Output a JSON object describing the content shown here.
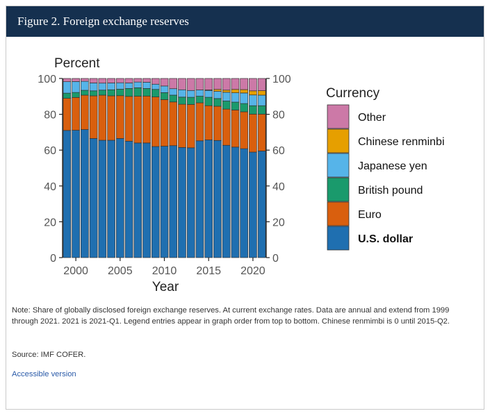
{
  "figure": {
    "title": "Figure 2. Foreign exchange reserves"
  },
  "chart_data": {
    "type": "bar",
    "stacked": true,
    "ylabel": "Percent",
    "xlabel": "Year",
    "ylim": [
      0,
      100
    ],
    "yticks": [
      0,
      20,
      40,
      60,
      80,
      100
    ],
    "xticks": [
      2000,
      2005,
      2010,
      2015,
      2020
    ],
    "grid": false,
    "legend_title": "Currency",
    "legend_position": "right",
    "categories": [
      1999,
      2000,
      2001,
      2002,
      2003,
      2004,
      2005,
      2006,
      2007,
      2008,
      2009,
      2010,
      2011,
      2012,
      2013,
      2014,
      2015,
      2016,
      2017,
      2018,
      2019,
      2020,
      2021
    ],
    "series": [
      {
        "name": "U.S. dollar",
        "color": "#1f6fb0",
        "bold": true,
        "values": [
          71.0,
          71.1,
          71.5,
          66.5,
          65.5,
          65.5,
          66.5,
          65.0,
          64.0,
          64.0,
          62.0,
          62.2,
          62.5,
          61.5,
          61.3,
          65.2,
          65.7,
          65.4,
          62.7,
          61.7,
          60.8,
          58.9,
          59.5
        ]
      },
      {
        "name": "Euro",
        "color": "#d95f0e",
        "values": [
          17.9,
          18.3,
          19.2,
          23.8,
          25.2,
          24.8,
          23.9,
          25.0,
          26.1,
          26.2,
          27.7,
          26.0,
          24.4,
          24.1,
          24.2,
          21.2,
          19.1,
          19.1,
          20.2,
          20.7,
          20.6,
          21.2,
          20.6
        ]
      },
      {
        "name": "British pound",
        "color": "#1a9a6c",
        "values": [
          2.9,
          2.8,
          2.7,
          2.8,
          2.8,
          3.4,
          3.6,
          4.4,
          4.7,
          4.2,
          4.2,
          3.9,
          3.8,
          4.0,
          4.0,
          3.7,
          4.7,
          4.3,
          4.5,
          4.4,
          4.6,
          4.7,
          4.7
        ]
      },
      {
        "name": "Japanese yen",
        "color": "#56b4e9",
        "values": [
          6.4,
          6.1,
          5.0,
          4.4,
          3.9,
          3.8,
          3.6,
          3.1,
          3.2,
          3.5,
          2.9,
          3.7,
          3.6,
          4.1,
          3.8,
          3.5,
          3.8,
          4.0,
          4.9,
          5.2,
          5.9,
          6.0,
          5.9
        ]
      },
      {
        "name": "Chinese renminbi",
        "color": "#e69f00",
        "values": [
          0,
          0,
          0,
          0,
          0,
          0,
          0,
          0,
          0,
          0,
          0,
          0,
          0,
          0,
          0,
          0,
          0.3,
          1.1,
          1.2,
          1.9,
          1.9,
          2.3,
          2.5
        ]
      },
      {
        "name": "Other",
        "color": "#cc79a7",
        "values": [
          1.8,
          1.7,
          1.6,
          2.5,
          2.6,
          2.5,
          2.4,
          2.5,
          2.0,
          2.1,
          3.2,
          4.2,
          5.7,
          6.3,
          6.7,
          6.4,
          6.4,
          6.1,
          6.5,
          6.1,
          6.2,
          6.9,
          6.8
        ]
      }
    ],
    "legend_order": [
      "Other",
      "Chinese renminbi",
      "Japanese yen",
      "British pound",
      "Euro",
      "U.S. dollar"
    ]
  },
  "footer": {
    "note": "Note: Share of globally disclosed foreign exchange reserves. At current exchange rates. Data are annual and extend from 1999 through 2021. 2021 is 2021-Q1. Legend entries appear in graph order from top to bottom. Chinese renmimbi is 0 until 2015-Q2.",
    "source": "Source: IMF COFER.",
    "accessible_link": "Accessible version"
  }
}
